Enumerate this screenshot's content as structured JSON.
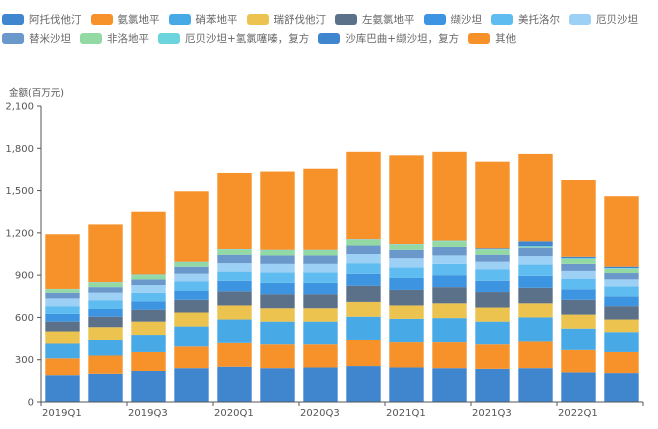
{
  "chart_data": {
    "type": "bar",
    "stacked": true,
    "title": "",
    "ylabel": "金额(百万元)",
    "xlabel": "",
    "ylim": [
      0,
      2100
    ],
    "yticks": [
      0,
      300,
      600,
      900,
      1200,
      1500,
      1800,
      2100
    ],
    "ytick_labels": [
      "0",
      "300",
      "600",
      "900",
      "1,200",
      "1,500",
      "1,800",
      "2,100"
    ],
    "grid": false,
    "legend_position": "top",
    "categories": [
      "2019Q1",
      "2019Q2",
      "2019Q3",
      "2019Q4",
      "2020Q1",
      "2020Q2",
      "2020Q3",
      "2020Q4",
      "2021Q1",
      "2021Q2",
      "2021Q3",
      "2021Q4",
      "2022Q1",
      "2022Q2"
    ],
    "xtick_labels": [
      "2019Q1",
      "",
      "2019Q3",
      "",
      "2020Q1",
      "",
      "2020Q3",
      "",
      "2021Q1",
      "",
      "2021Q3",
      "",
      "2022Q1",
      ""
    ],
    "series": [
      {
        "name": "阿托伐他汀",
        "color": "#3f86cf",
        "values": [
          190,
          200,
          220,
          240,
          250,
          240,
          245,
          255,
          245,
          240,
          235,
          240,
          210,
          205
        ]
      },
      {
        "name": "氨氯地平",
        "color": "#f7922a",
        "values": [
          120,
          130,
          135,
          155,
          170,
          170,
          165,
          185,
          180,
          185,
          175,
          190,
          160,
          150
        ]
      },
      {
        "name": "硝苯地平",
        "color": "#47a9e6",
        "values": [
          105,
          110,
          120,
          140,
          165,
          160,
          160,
          165,
          165,
          170,
          160,
          170,
          150,
          140
        ]
      },
      {
        "name": "瑞舒伐他汀",
        "color": "#ecc34f",
        "values": [
          85,
          90,
          95,
          100,
          100,
          95,
          95,
          105,
          95,
          105,
          100,
          100,
          100,
          90
        ]
      },
      {
        "name": "左氨氯地平",
        "color": "#5b7189",
        "values": [
          70,
          75,
          85,
          90,
          100,
          100,
          100,
          115,
          110,
          115,
          110,
          110,
          105,
          95
        ]
      },
      {
        "name": "缬沙坦",
        "color": "#3d94e0",
        "values": [
          55,
          55,
          60,
          65,
          75,
          80,
          80,
          85,
          85,
          85,
          80,
          85,
          75,
          70
        ]
      },
      {
        "name": "美托洛尔",
        "color": "#5fbcf0",
        "values": [
          55,
          60,
          60,
          65,
          65,
          75,
          75,
          75,
          75,
          80,
          80,
          80,
          75,
          70
        ]
      },
      {
        "name": "厄贝沙坦",
        "color": "#9dd0f5",
        "values": [
          55,
          55,
          55,
          55,
          60,
          60,
          60,
          65,
          65,
          60,
          55,
          60,
          55,
          50
        ]
      },
      {
        "name": "替米沙坦",
        "color": "#6b98cb",
        "values": [
          40,
          40,
          40,
          50,
          60,
          60,
          60,
          60,
          60,
          60,
          50,
          60,
          50,
          45
        ]
      },
      {
        "name": "非洛地平",
        "color": "#93d9a4",
        "values": [
          25,
          30,
          30,
          30,
          35,
          35,
          35,
          40,
          35,
          40,
          35,
          5,
          35,
          30
        ]
      },
      {
        "name": "厄贝沙坦+氢氯噻嗪，复方",
        "color": "#6cd4dd",
        "values": [
          2,
          5,
          5,
          5,
          5,
          5,
          5,
          5,
          5,
          5,
          5,
          5,
          5,
          5
        ]
      },
      {
        "name": "沙库巴曲+缬沙坦，复方",
        "color": "#3f86cf",
        "values": [
          0,
          0,
          0,
          0,
          0,
          0,
          0,
          0,
          0,
          0,
          5,
          35,
          10,
          10
        ]
      },
      {
        "name": "其他",
        "color": "#f7922a",
        "values": [
          388,
          410,
          445,
          500,
          540,
          555,
          575,
          620,
          630,
          630,
          615,
          620,
          545,
          500
        ]
      }
    ]
  }
}
